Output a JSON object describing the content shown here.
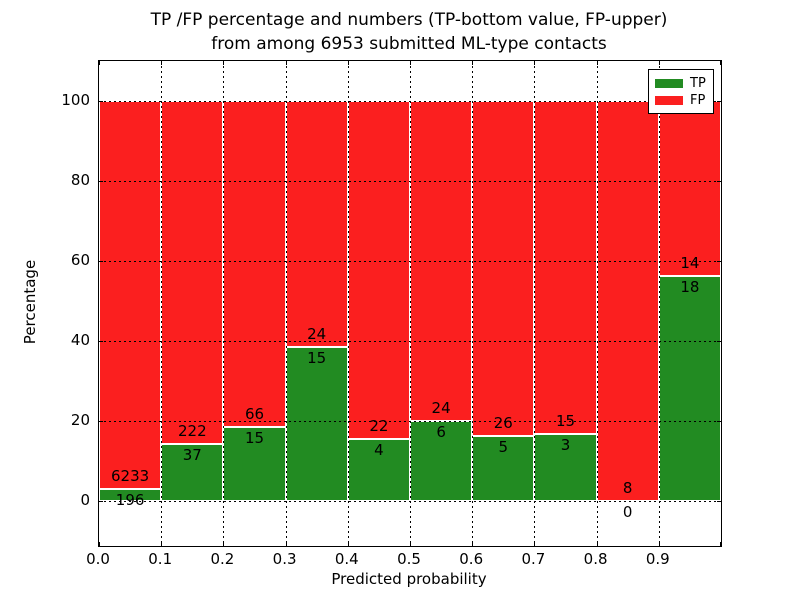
{
  "chart_data": {
    "type": "bar",
    "stacked": true,
    "units": "percent of bin, annotated with raw counts",
    "title_line1": "TP /FP percentage and numbers (TP-bottom value, FP-upper)",
    "title_line2": "from among 6953 submitted ML-type contacts",
    "xlabel": "Predicted probability",
    "ylabel": "Percentage",
    "total_contacts": 6953,
    "bin_edges": [
      0.0,
      0.1,
      0.2,
      0.3,
      0.4,
      0.5,
      0.6,
      0.7,
      0.8,
      0.9,
      1.0
    ],
    "series": [
      {
        "name": "TP",
        "color": "#228b22",
        "counts": [
          196,
          37,
          15,
          15,
          4,
          6,
          5,
          3,
          0,
          18
        ]
      },
      {
        "name": "FP",
        "color": "#fb1f1f",
        "counts": [
          6233,
          222,
          66,
          24,
          22,
          24,
          26,
          15,
          8,
          14
        ]
      }
    ],
    "xticks": [
      "0.0",
      "0.1",
      "0.2",
      "0.3",
      "0.4",
      "0.5",
      "0.6",
      "0.7",
      "0.8",
      "0.9"
    ],
    "yticks": [
      "0",
      "20",
      "40",
      "60",
      "80",
      "100"
    ],
    "ytick_values": [
      0,
      20,
      40,
      60,
      80,
      100
    ],
    "xlim": [
      0.0,
      1.0
    ],
    "ylim": [
      -11.25,
      110
    ],
    "grid": true,
    "legend": {
      "position": "upper right",
      "entries": [
        {
          "label": "TP",
          "color": "#228b22"
        },
        {
          "label": "FP",
          "color": "#fb1f1f"
        }
      ]
    }
  }
}
